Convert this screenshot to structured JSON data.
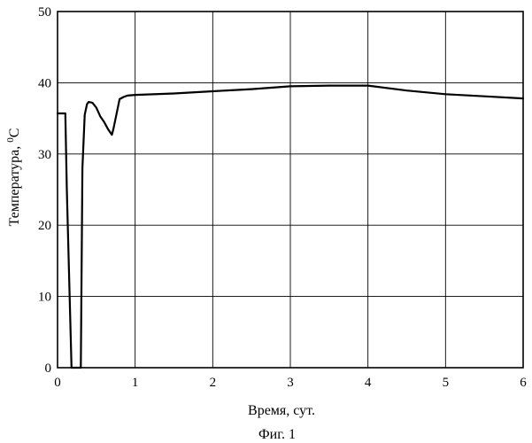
{
  "chart_data": {
    "type": "line",
    "title": "",
    "xlabel": "Время, сут.",
    "ylabel_main": "Температура, ",
    "ylabel_sup": "0",
    "ylabel_unit": "C",
    "caption": "Фиг. 1",
    "xlim": [
      0,
      6
    ],
    "ylim": [
      0,
      50
    ],
    "xticks": [
      0,
      1,
      2,
      3,
      4,
      5,
      6
    ],
    "yticks": [
      0,
      10,
      20,
      30,
      40,
      50
    ],
    "grid": true,
    "legend": "none",
    "line_color": "#000000",
    "series": [
      {
        "x": [
          0,
          0.05,
          0.08,
          0.1,
          0.12,
          0.18,
          0.2,
          0.3,
          0.32,
          0.35,
          0.38,
          0.4,
          0.45,
          0.5,
          0.55,
          0.6,
          0.65,
          0.7,
          0.72,
          0.8,
          0.85,
          0.9,
          1.0,
          1.5,
          2.0,
          2.5,
          3.0,
          3.5,
          4.0,
          4.5,
          5.0,
          5.5,
          6.0
        ],
        "y": [
          35.7,
          35.7,
          35.7,
          35.7,
          25.0,
          0.0,
          0.0,
          0.0,
          28.0,
          35.5,
          37.0,
          37.3,
          37.2,
          36.5,
          35.3,
          34.5,
          33.5,
          32.7,
          33.5,
          37.7,
          38.0,
          38.2,
          38.3,
          38.5,
          38.8,
          39.1,
          39.5,
          39.6,
          39.6,
          38.9,
          38.4,
          38.1,
          37.8
        ]
      }
    ]
  }
}
